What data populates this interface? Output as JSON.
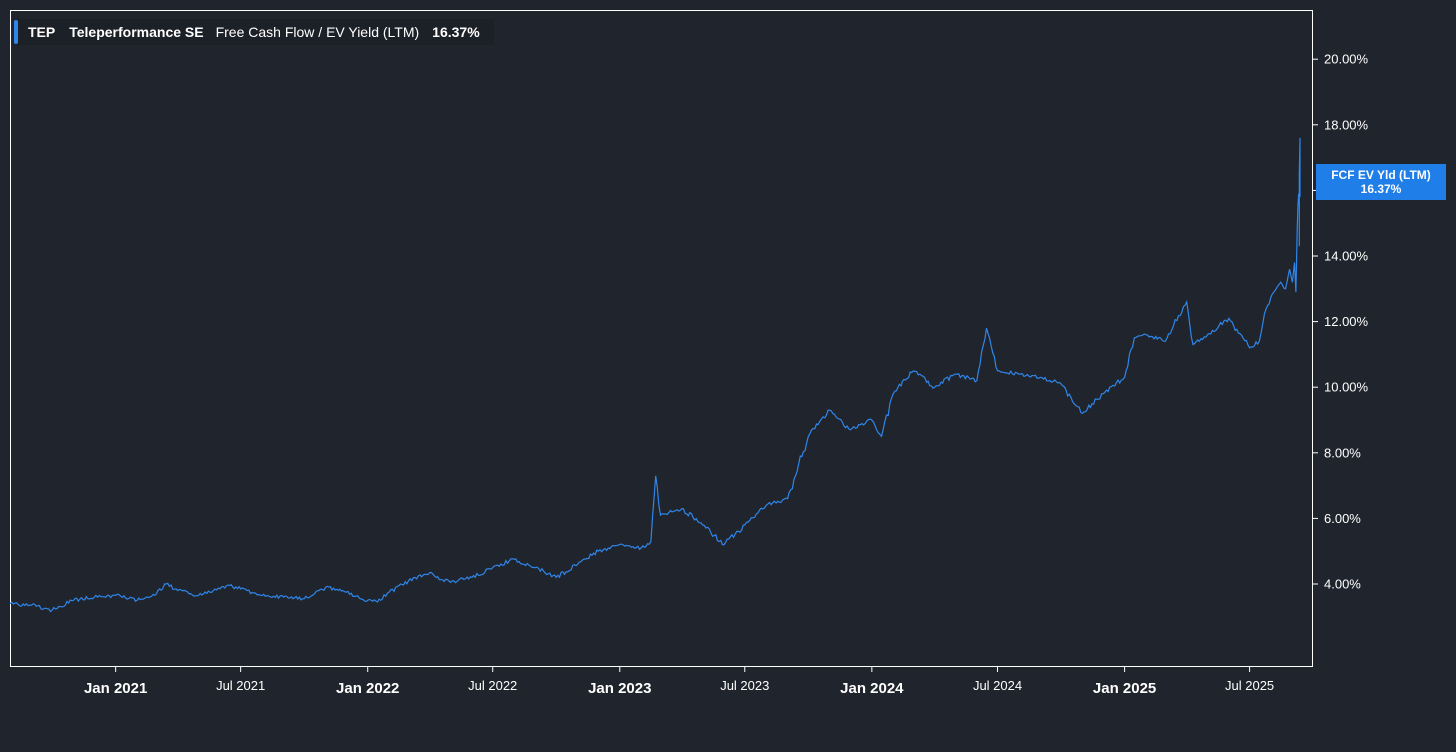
{
  "legend": {
    "ticker": "TEP",
    "company": "Teleperformance SE",
    "metric": "Free Cash Flow / EV Yield (LTM)",
    "value": "16.37%"
  },
  "last_value_tag": {
    "label": "FCF EV Yld (LTM)",
    "value": "16.37%"
  },
  "colors": {
    "background": "#20242c",
    "line": "#2f86ea",
    "axis": "#ffffff",
    "tag_bg": "#1f7ee8"
  },
  "chart_data": {
    "type": "line",
    "title": "",
    "xlabel": "",
    "ylabel": "",
    "grid": false,
    "legend_position": "top-left",
    "y_axis_side": "right",
    "ylim": [
      1.5,
      21.5
    ],
    "xlim": [
      "2020-08-01",
      "2025-09-12"
    ],
    "y_ticks": [
      4,
      6,
      8,
      10,
      12,
      14,
      16,
      18,
      20
    ],
    "y_tick_labels": [
      "4.00%",
      "6.00%",
      "8.00%",
      "10.00%",
      "12.00%",
      "14.00%",
      "16.00%",
      "18.00%",
      "20.00%"
    ],
    "x_ticks": [
      {
        "date": "2021-01-01",
        "label": "Jan 2021",
        "major": true
      },
      {
        "date": "2021-07-01",
        "label": "Jul 2021",
        "major": false
      },
      {
        "date": "2022-01-01",
        "label": "Jan 2022",
        "major": true
      },
      {
        "date": "2022-07-01",
        "label": "Jul 2022",
        "major": false
      },
      {
        "date": "2023-01-01",
        "label": "Jan 2023",
        "major": true
      },
      {
        "date": "2023-07-01",
        "label": "Jul 2023",
        "major": false
      },
      {
        "date": "2024-01-01",
        "label": "Jan 2024",
        "major": true
      },
      {
        "date": "2024-07-01",
        "label": "Jul 2024",
        "major": false
      },
      {
        "date": "2025-01-01",
        "label": "Jan 2025",
        "major": true
      },
      {
        "date": "2025-07-01",
        "label": "Jul 2025",
        "major": false
      }
    ],
    "series": [
      {
        "name": "Free Cash Flow / EV Yield (LTM)",
        "points": [
          [
            "2020-08-01",
            3.4
          ],
          [
            "2020-09-01",
            3.35
          ],
          [
            "2020-10-01",
            3.2
          ],
          [
            "2020-11-01",
            3.5
          ],
          [
            "2020-12-01",
            3.6
          ],
          [
            "2021-01-01",
            3.65
          ],
          [
            "2021-02-01",
            3.5
          ],
          [
            "2021-03-01",
            3.7
          ],
          [
            "2021-03-15",
            4.0
          ],
          [
            "2021-04-01",
            3.8
          ],
          [
            "2021-05-01",
            3.65
          ],
          [
            "2021-06-01",
            3.85
          ],
          [
            "2021-06-15",
            3.95
          ],
          [
            "2021-07-01",
            3.85
          ],
          [
            "2021-08-01",
            3.65
          ],
          [
            "2021-09-01",
            3.6
          ],
          [
            "2021-10-01",
            3.55
          ],
          [
            "2021-11-01",
            3.9
          ],
          [
            "2021-12-01",
            3.75
          ],
          [
            "2022-01-01",
            3.5
          ],
          [
            "2022-01-15",
            3.45
          ],
          [
            "2022-02-01",
            3.75
          ],
          [
            "2022-03-01",
            4.1
          ],
          [
            "2022-04-01",
            4.35
          ],
          [
            "2022-04-10",
            4.2
          ],
          [
            "2022-05-01",
            4.05
          ],
          [
            "2022-06-01",
            4.2
          ],
          [
            "2022-07-01",
            4.5
          ],
          [
            "2022-08-01",
            4.75
          ],
          [
            "2022-09-01",
            4.5
          ],
          [
            "2022-10-01",
            4.2
          ],
          [
            "2022-11-01",
            4.6
          ],
          [
            "2022-12-01",
            5.0
          ],
          [
            "2023-01-01",
            5.2
          ],
          [
            "2023-02-01",
            5.1
          ],
          [
            "2023-02-15",
            5.3
          ],
          [
            "2023-02-22",
            7.3
          ],
          [
            "2023-03-01",
            6.1
          ],
          [
            "2023-04-01",
            6.3
          ],
          [
            "2023-05-01",
            5.8
          ],
          [
            "2023-06-01",
            5.2
          ],
          [
            "2023-07-01",
            5.8
          ],
          [
            "2023-08-01",
            6.4
          ],
          [
            "2023-09-01",
            6.6
          ],
          [
            "2023-10-01",
            8.5
          ],
          [
            "2023-11-01",
            9.3
          ],
          [
            "2023-12-01",
            8.7
          ],
          [
            "2024-01-01",
            9.0
          ],
          [
            "2024-01-15",
            8.5
          ],
          [
            "2024-02-01",
            9.8
          ],
          [
            "2024-03-01",
            10.5
          ],
          [
            "2024-04-01",
            10.0
          ],
          [
            "2024-05-01",
            10.4
          ],
          [
            "2024-06-01",
            10.2
          ],
          [
            "2024-06-15",
            11.8
          ],
          [
            "2024-07-01",
            10.5
          ],
          [
            "2024-08-01",
            10.4
          ],
          [
            "2024-09-01",
            10.3
          ],
          [
            "2024-10-01",
            10.1
          ],
          [
            "2024-11-01",
            9.2
          ],
          [
            "2024-12-01",
            9.8
          ],
          [
            "2025-01-01",
            10.3
          ],
          [
            "2025-01-15",
            11.5
          ],
          [
            "2025-02-01",
            11.6
          ],
          [
            "2025-03-01",
            11.4
          ],
          [
            "2025-04-01",
            12.6
          ],
          [
            "2025-04-10",
            11.3
          ],
          [
            "2025-05-01",
            11.6
          ],
          [
            "2025-06-01",
            12.1
          ],
          [
            "2025-07-01",
            11.2
          ],
          [
            "2025-07-15",
            11.4
          ],
          [
            "2025-07-25",
            12.4
          ],
          [
            "2025-08-05",
            12.9
          ],
          [
            "2025-08-15",
            13.2
          ],
          [
            "2025-08-22",
            13.0
          ],
          [
            "2025-08-28",
            13.6
          ],
          [
            "2025-09-01",
            13.2
          ],
          [
            "2025-09-04",
            13.8
          ],
          [
            "2025-09-06",
            12.9
          ],
          [
            "2025-09-08",
            14.8
          ],
          [
            "2025-09-09",
            15.5
          ],
          [
            "2025-09-10",
            15.9
          ],
          [
            "2025-09-11",
            15.5
          ],
          [
            "2025-09-11",
            14.3
          ],
          [
            "2025-09-11",
            16.5
          ],
          [
            "2025-09-12",
            17.6
          ],
          [
            "2025-09-12",
            16.8
          ],
          [
            "2025-09-12",
            15.8
          ],
          [
            "2025-09-12",
            16.9
          ],
          [
            "2025-09-12",
            16.4
          ]
        ]
      }
    ]
  }
}
